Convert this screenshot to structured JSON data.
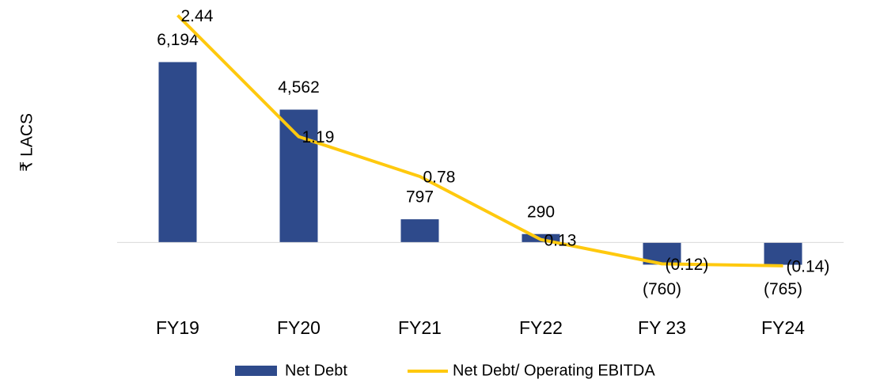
{
  "chart_data": {
    "type": "bar_line",
    "y_axis_label": "₹ LACS",
    "categories": [
      "FY19",
      "FY20",
      "FY21",
      "FY22",
      "FY 23",
      "FY24"
    ],
    "ylim": [
      -2000,
      8000
    ],
    "y2lim": [
      -0.5,
      2.5
    ],
    "series": [
      {
        "name": "Net Debt",
        "type": "bar",
        "color": "#2e4a8b",
        "values": [
          6194,
          4562,
          797,
          290,
          -760,
          -765
        ],
        "value_labels": [
          "6,194",
          "4,562",
          "797",
          "290",
          "(760)",
          "(765)"
        ]
      },
      {
        "name": "Net Debt/ Operating EBITDA",
        "type": "line",
        "axis": "y2",
        "color": "#ffc90e",
        "values": [
          2.44,
          1.19,
          0.78,
          0.13,
          -0.12,
          -0.14
        ],
        "value_labels": [
          "2.44",
          "1.19",
          "0.78",
          "0.13",
          "(0.12)",
          "(0.14)"
        ]
      }
    ]
  }
}
